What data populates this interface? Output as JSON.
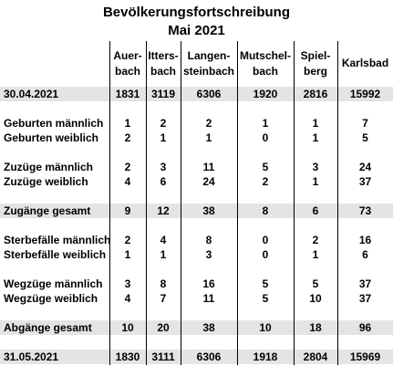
{
  "title": [
    "Bevölkerungsfortschreibung",
    "Mai 2021"
  ],
  "columns": [
    [
      "Auer-",
      "bach"
    ],
    [
      "Itters-",
      "bach"
    ],
    [
      "Langen-",
      "steinbach"
    ],
    [
      "Mutschel-",
      "bach"
    ],
    [
      "Spiel-",
      "berg"
    ],
    [
      "Karlsbad"
    ]
  ],
  "groups": [
    [
      {
        "label": "30.04.2021",
        "shaded": true,
        "values": [
          1831,
          3119,
          6306,
          1920,
          2816,
          15992
        ]
      }
    ],
    [
      {
        "label": "Geburten männlich",
        "values": [
          1,
          2,
          2,
          1,
          1,
          7
        ]
      },
      {
        "label": "Geburten weiblich",
        "values": [
          2,
          1,
          1,
          0,
          1,
          5
        ]
      }
    ],
    [
      {
        "label": "Zuzüge männlich",
        "values": [
          2,
          3,
          11,
          5,
          3,
          24
        ]
      },
      {
        "label": "Zuzüge weiblich",
        "values": [
          4,
          6,
          24,
          2,
          1,
          37
        ]
      }
    ],
    [
      {
        "label": "Zugänge gesamt",
        "shaded": true,
        "values": [
          9,
          12,
          38,
          8,
          6,
          73
        ]
      }
    ],
    [
      {
        "label": "Sterbefälle männlich",
        "values": [
          2,
          4,
          8,
          0,
          2,
          16
        ]
      },
      {
        "label": "Sterbefälle weiblich",
        "values": [
          1,
          1,
          3,
          0,
          1,
          6
        ]
      }
    ],
    [
      {
        "label": "Wegzüge männlich",
        "values": [
          3,
          8,
          16,
          5,
          5,
          37
        ]
      },
      {
        "label": "Wegzüge weiblich",
        "values": [
          4,
          7,
          11,
          5,
          10,
          37
        ]
      }
    ],
    [
      {
        "label": "Abgänge gesamt",
        "shaded": true,
        "values": [
          10,
          20,
          38,
          10,
          18,
          96
        ]
      }
    ],
    [
      {
        "label": "31.05.2021",
        "shaded": true,
        "values": [
          1830,
          3111,
          6306,
          1918,
          2804,
          15969
        ]
      }
    ]
  ]
}
